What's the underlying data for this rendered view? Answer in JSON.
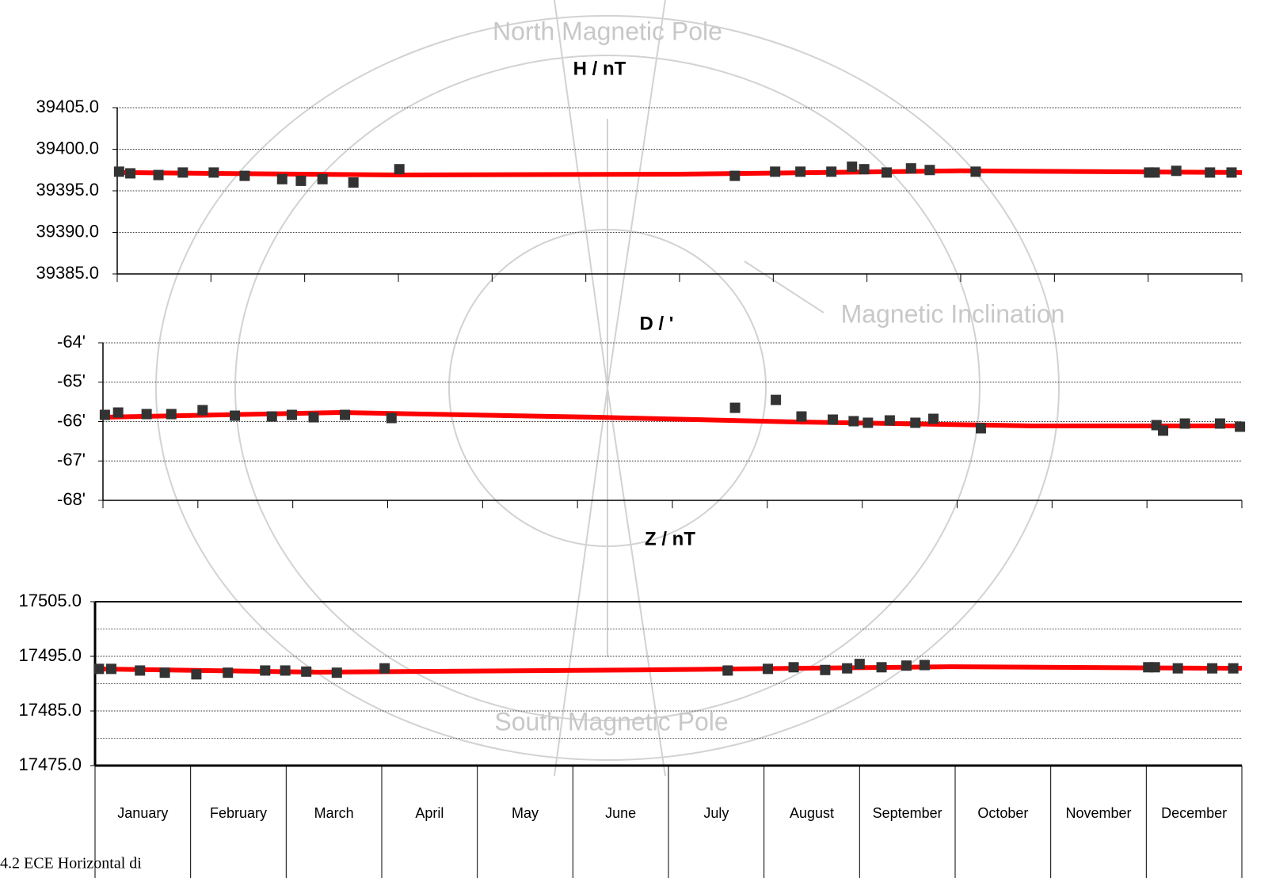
{
  "background_labels": [
    "North Magnetic Pole",
    "Magnetic Inclination",
    "South Magnetic Pole"
  ],
  "caption": "4.2 ECE Horizontal di",
  "chart_data": [
    {
      "type": "scatter",
      "title": "H / nT",
      "xlim": [
        0,
        12
      ],
      "xticks": [
        0,
        1,
        2,
        3,
        4,
        5,
        6,
        7,
        8,
        9,
        10,
        11,
        12
      ],
      "ylim": [
        39385,
        39405
      ],
      "yticks": [
        {
          "value": 39385,
          "label": "39385.0"
        },
        {
          "value": 39390,
          "label": "39390.0"
        },
        {
          "value": 39395,
          "label": "39395.0"
        },
        {
          "value": 39400,
          "label": "39400.0"
        },
        {
          "value": 39405,
          "label": "39405.0"
        }
      ],
      "grid": true,
      "series": [
        {
          "color": "#333333",
          "x": [
            0.02,
            0.14,
            0.44,
            0.7,
            1.03,
            1.36,
            1.76,
            1.96,
            2.19,
            2.52,
            3.01,
            6.59,
            7.02,
            7.29,
            7.62,
            7.84,
            7.97,
            8.21,
            8.47,
            8.67,
            9.16,
            11.01,
            11.07,
            11.3,
            11.66,
            11.89
          ],
          "values": [
            39397.3,
            39397.1,
            39396.9,
            39397.2,
            39397.2,
            39396.8,
            39396.4,
            39396.2,
            39396.4,
            39396.0,
            39397.6,
            39396.8,
            39397.3,
            39397.3,
            39397.3,
            39397.9,
            39397.6,
            39397.2,
            39397.7,
            39397.5,
            39397.3,
            39397.2,
            39397.2,
            39397.4,
            39397.2,
            39397.2
          ]
        }
      ],
      "fit": {
        "color": "#ff0000",
        "x": [
          0,
          3,
          6,
          9,
          12
        ],
        "values": [
          39397.2,
          39396.9,
          39397.0,
          39397.4,
          39397.2
        ]
      }
    },
    {
      "type": "scatter",
      "title": "D / '",
      "xlim": [
        0,
        12
      ],
      "xticks": [
        0,
        1,
        2,
        3,
        4,
        5,
        6,
        7,
        8,
        9,
        10,
        11,
        12
      ],
      "ylim": [
        -68,
        -64
      ],
      "yticks": [
        {
          "value": -68,
          "label": "-68'"
        },
        {
          "value": -67,
          "label": "-67'"
        },
        {
          "value": -66,
          "label": "-66'"
        },
        {
          "value": -65,
          "label": "-65'"
        },
        {
          "value": -64,
          "label": "-64'"
        }
      ],
      "grid": true,
      "series": [
        {
          "color": "#333333",
          "x": [
            0.02,
            0.16,
            0.46,
            0.72,
            1.05,
            1.39,
            1.78,
            1.99,
            2.22,
            2.55,
            3.04,
            6.66,
            7.09,
            7.36,
            7.69,
            7.91,
            8.06,
            8.29,
            8.56,
            8.75,
            9.25,
            11.1,
            11.17,
            11.4,
            11.77,
            11.98
          ],
          "values": [
            -65.83,
            -65.77,
            -65.81,
            -65.81,
            -65.71,
            -65.85,
            -65.87,
            -65.83,
            -65.89,
            -65.83,
            -65.91,
            -65.65,
            -65.45,
            -65.87,
            -65.95,
            -65.99,
            -66.03,
            -65.97,
            -66.03,
            -65.93,
            -66.17,
            -66.09,
            -66.23,
            -66.05,
            -66.05,
            -66.13
          ]
        }
      ],
      "fit": {
        "color": "#ff0000",
        "x": [
          0,
          2.5,
          5.2,
          7.3,
          9.8,
          12
        ],
        "values": [
          -65.89,
          -65.77,
          -65.89,
          -66.01,
          -66.11,
          -66.11
        ]
      }
    },
    {
      "type": "scatter",
      "title": "Z / nT",
      "xlim": [
        0,
        12
      ],
      "xticks": [
        0,
        1,
        2,
        3,
        4,
        5,
        6,
        7,
        8,
        9,
        10,
        11,
        12
      ],
      "categories": [
        "January",
        "February",
        "March",
        "April",
        "May",
        "June",
        "July",
        "August",
        "September",
        "October",
        "November",
        "December"
      ],
      "ylim": [
        17475,
        17505
      ],
      "yticks": [
        {
          "value": 17475,
          "label": "17475.0"
        },
        {
          "value": 17485,
          "label": "17485.0"
        },
        {
          "value": 17495,
          "label": "17495.0"
        },
        {
          "value": 17505,
          "label": "17505.0"
        }
      ],
      "minor_yticks": [
        17480,
        17490,
        17500
      ],
      "grid": true,
      "series": [
        {
          "color": "#333333",
          "x": [
            0.04,
            0.17,
            0.47,
            0.73,
            1.06,
            1.39,
            1.78,
            1.99,
            2.21,
            2.53,
            3.03,
            6.62,
            7.04,
            7.31,
            7.64,
            7.87,
            8.0,
            8.23,
            8.49,
            8.68,
            11.02,
            11.09,
            11.33,
            11.69,
            11.91
          ],
          "values": [
            17492.7,
            17492.7,
            17492.4,
            17492.0,
            17491.7,
            17492.0,
            17492.4,
            17492.4,
            17492.2,
            17492.0,
            17492.8,
            17492.4,
            17492.7,
            17493.0,
            17492.5,
            17492.8,
            17493.6,
            17493.0,
            17493.3,
            17493.4,
            17493.0,
            17493.0,
            17492.8,
            17492.8,
            17492.8
          ]
        }
      ],
      "fit": {
        "color": "#ff0000",
        "x": [
          0,
          2.32,
          5.63,
          8.95,
          12
        ],
        "values": [
          17492.7,
          17492.1,
          17492.5,
          17493.1,
          17492.8
        ]
      }
    }
  ]
}
